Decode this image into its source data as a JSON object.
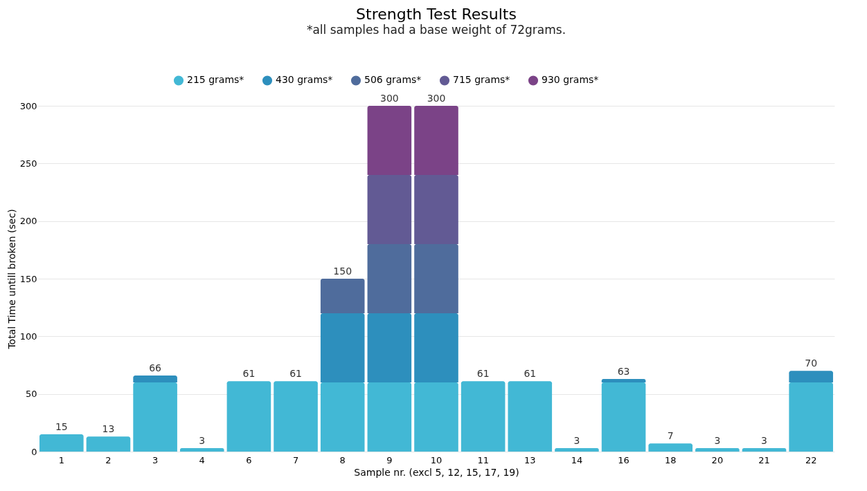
{
  "chart_data": {
    "type": "bar",
    "stacked": true,
    "title": "Strength Test Results",
    "subtitle": "*all samples had a base weight of 72grams.",
    "xlabel": "Sample nr. (excl 5, 12, 15, 17, 19)",
    "ylabel": "Total Time untill broken (sec)",
    "categories": [
      "1",
      "2",
      "3",
      "4",
      "6",
      "7",
      "8",
      "9",
      "10",
      "11",
      "13",
      "14",
      "16",
      "18",
      "20",
      "21",
      "22"
    ],
    "series": [
      {
        "name": "215 grams*",
        "color": "#42b8d5",
        "values": [
          15,
          13,
          60,
          3,
          61,
          61,
          60,
          60,
          60,
          61,
          61,
          3,
          60,
          7,
          3,
          3,
          60
        ]
      },
      {
        "name": "430 grams*",
        "color": "#2d8fbd",
        "values": [
          null,
          null,
          6,
          null,
          null,
          null,
          60,
          60,
          60,
          null,
          null,
          null,
          3,
          null,
          null,
          null,
          10
        ]
      },
      {
        "name": "506 grams*",
        "color": "#4f6c9c",
        "values": [
          null,
          null,
          null,
          null,
          null,
          null,
          30,
          60,
          60,
          null,
          null,
          null,
          null,
          null,
          null,
          null,
          null
        ]
      },
      {
        "name": "715 grams*",
        "color": "#625a94",
        "values": [
          null,
          null,
          null,
          null,
          null,
          null,
          null,
          60,
          60,
          null,
          null,
          null,
          null,
          null,
          null,
          null,
          null
        ]
      },
      {
        "name": "930 grams*",
        "color": "#7b4387",
        "values": [
          null,
          null,
          null,
          null,
          null,
          null,
          null,
          60,
          60,
          null,
          null,
          null,
          null,
          null,
          null,
          null,
          null
        ]
      }
    ],
    "totals": [
      "15",
      "13",
      "66",
      "3",
      "61",
      "61",
      "150",
      "300",
      "300",
      "61",
      "61",
      "3",
      "63",
      "7",
      "3",
      "3",
      "70"
    ],
    "ylim": [
      0,
      300
    ],
    "yticks": [
      0,
      50,
      100,
      150,
      200,
      250,
      300
    ],
    "grid": "y",
    "legend": "top"
  }
}
